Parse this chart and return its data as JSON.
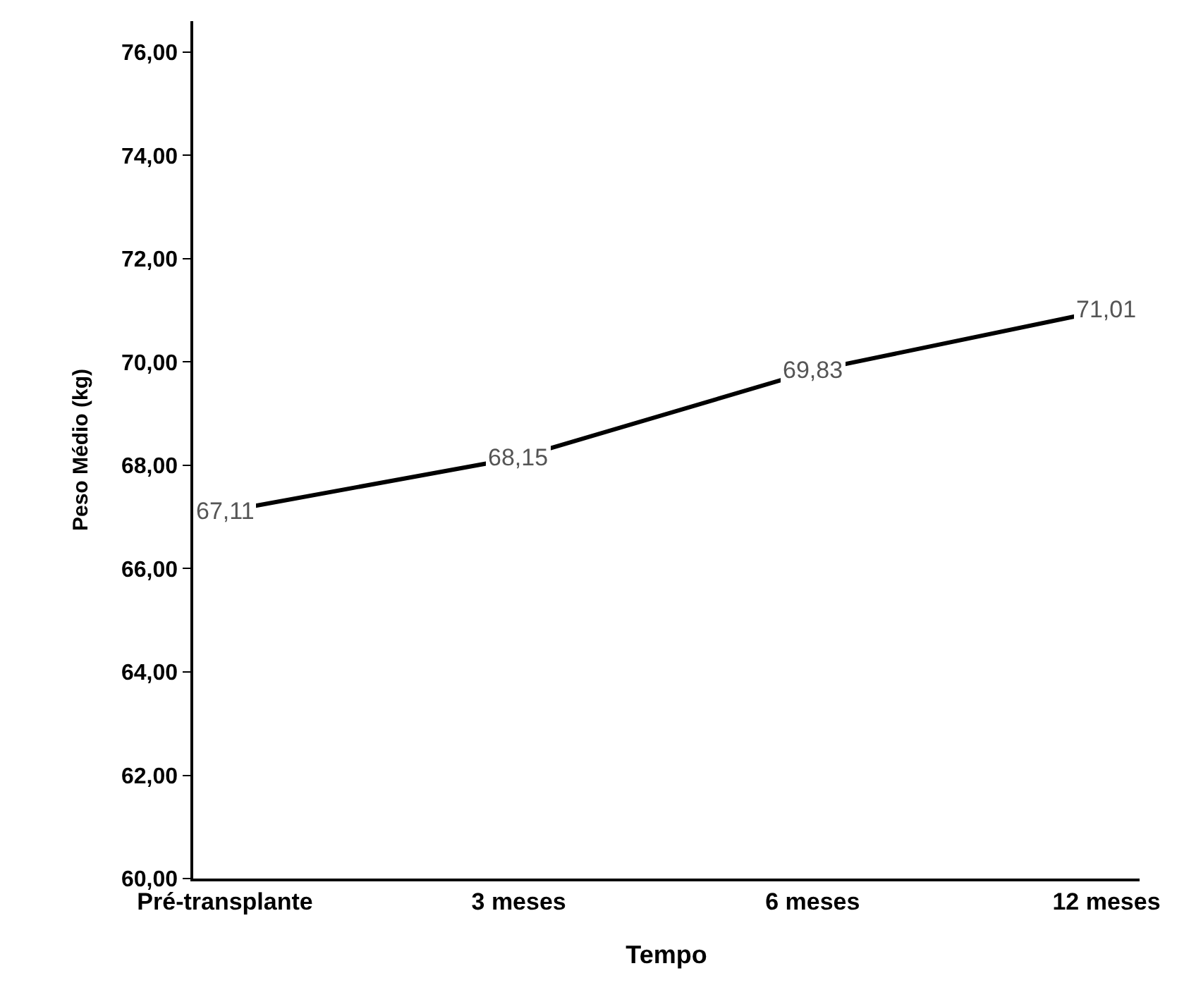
{
  "chart_data": {
    "type": "line",
    "xlabel": "Tempo",
    "ylabel": "Peso Médio (kg)",
    "categories": [
      "Pré-transplante",
      "3 meses",
      "6 meses",
      "12 meses"
    ],
    "series": [
      {
        "color": "#000000",
        "values": [
          67.11,
          68.15,
          69.83,
          71.01
        ],
        "value_labels": [
          "67,11",
          "68,15",
          "69,83",
          "71,01"
        ]
      }
    ],
    "ylim": [
      60,
      76.6
    ],
    "yticks": [
      {
        "value": 60,
        "label": "60,00"
      },
      {
        "value": 62,
        "label": "62,00"
      },
      {
        "value": 64,
        "label": "64,00"
      },
      {
        "value": 66,
        "label": "66,00"
      },
      {
        "value": 68,
        "label": "68,00"
      },
      {
        "value": 70,
        "label": "70,00"
      },
      {
        "value": 72,
        "label": "72,00"
      },
      {
        "value": 74,
        "label": "74,00"
      },
      {
        "value": 76,
        "label": "76,00"
      }
    ],
    "grid": false,
    "marker": "none",
    "line_style": "solid"
  }
}
